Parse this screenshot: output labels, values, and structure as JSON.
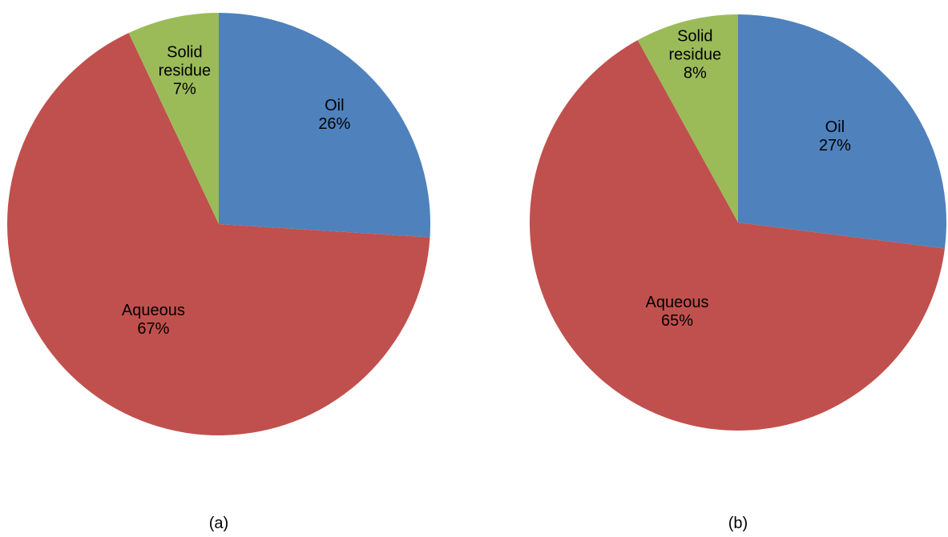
{
  "chart_data": [
    {
      "type": "pie",
      "title": "(a)",
      "categories": [
        "Oil",
        "Aqueous",
        "Solid residue"
      ],
      "values": [
        26,
        67,
        7
      ],
      "value_labels": [
        "26%",
        "67%",
        "7%"
      ],
      "colors": [
        "#4f81bd",
        "#c0504d",
        "#9bbb59"
      ]
    },
    {
      "type": "pie",
      "title": "(b)",
      "categories": [
        "Oil",
        "Aqueous",
        "Solid residue"
      ],
      "values": [
        27,
        65,
        8
      ],
      "value_labels": [
        "27%",
        "65%",
        "8%"
      ],
      "colors": [
        "#4f81bd",
        "#c0504d",
        "#9bbb59"
      ]
    }
  ]
}
